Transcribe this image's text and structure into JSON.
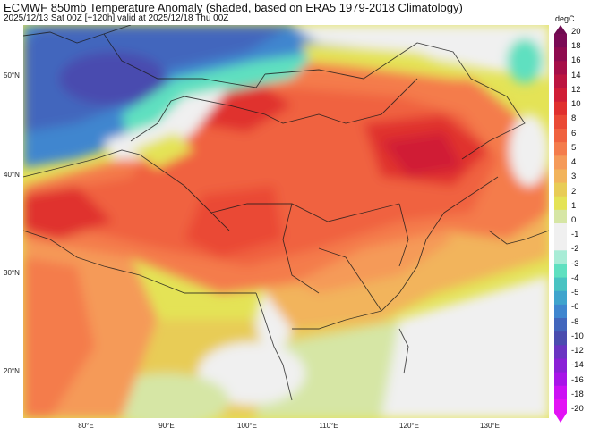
{
  "header": {
    "title": "ECMWF 850mb Temperature Anomaly (shaded, based on ERA5 1979-2018 Climatology)",
    "subtitle": "2025/12/13 Sat 00Z [+120h] valid at 2025/12/18 Thu 00Z"
  },
  "axes": {
    "y_labels": [
      "50°N",
      "40°N",
      "30°N",
      "20°N"
    ],
    "x_labels": [
      "80°E",
      "90°E",
      "100°E",
      "110°E",
      "120°E",
      "130°E"
    ]
  },
  "colorbar": {
    "unit": "degC",
    "ticks": [
      "20",
      "18",
      "16",
      "14",
      "12",
      "10",
      "8",
      "6",
      "5",
      "4",
      "3",
      "2",
      "1",
      "0",
      "-1",
      "-2",
      "-3",
      "-4",
      "-5",
      "-6",
      "-8",
      "-10",
      "-12",
      "-14",
      "-16",
      "-18",
      "-20"
    ],
    "colors": [
      "#7a0a55",
      "#8f0b4f",
      "#a60f48",
      "#bc1540",
      "#d01e36",
      "#e0302e",
      "#ea4a35",
      "#f0623f",
      "#f47c4c",
      "#f59a59",
      "#f2b45c",
      "#e8cc56",
      "#e4e356",
      "#d6e6a5",
      "#f0f0f0",
      "#f0f0f0",
      "#a8ecd6",
      "#5fe0c0",
      "#49c3c2",
      "#3fa4cd",
      "#3f86cf",
      "#4266bd",
      "#4a4caf",
      "#6a34c2",
      "#8a20d6",
      "#a814e8",
      "#cc10f4",
      "#e312f5"
    ]
  },
  "map": {
    "description": "Shaded 850mb temperature anomaly over East/Central Asia with country and province boundaries",
    "extent": {
      "lon": [
        72,
        137
      ],
      "lat": [
        15,
        56
      ]
    }
  }
}
